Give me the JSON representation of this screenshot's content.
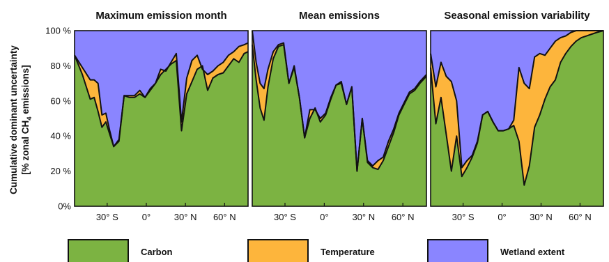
{
  "chart_data": {
    "type": "area",
    "ylabel_line1": "Cumulative dominant uncertainty",
    "ylabel_line2": "[% zonal CH",
    "ylabel_sub": "4",
    "ylabel_line2_end": " emissions]",
    "yticks": [
      "0%",
      "20 %",
      "40 %",
      "60 %",
      "80 %",
      "100 %"
    ],
    "ylim": [
      0,
      100
    ],
    "xlim": [
      -55,
      78
    ],
    "xticks": [
      {
        "value": -30,
        "label": "30° S"
      },
      {
        "value": 0,
        "label": "0°"
      },
      {
        "value": 30,
        "label": "30° N"
      },
      {
        "value": 60,
        "label": "60° N"
      }
    ],
    "colors": {
      "carbon": "#7cb342",
      "temperature": "#fdb53c",
      "wetland": "#8a85ff"
    },
    "legend": [
      {
        "name": "Carbon",
        "color_key": "carbon"
      },
      {
        "name": "Temperature",
        "color_key": "temperature"
      },
      {
        "name": "Wetland extent",
        "color_key": "wetland"
      }
    ],
    "panels": [
      {
        "title": "Maximum emission month",
        "lat": [
          -55,
          -49,
          -43,
          -40,
          -37,
          -34,
          -31,
          -28,
          -25,
          -21,
          -17,
          -13,
          -9,
          -5,
          -1,
          3,
          7,
          11,
          15,
          19,
          23,
          27,
          31,
          35,
          39,
          43,
          47,
          51,
          55,
          59,
          63,
          67,
          71,
          75,
          78
        ],
        "carbon": [
          86,
          75,
          61,
          62,
          54,
          45,
          48,
          41,
          34,
          37,
          63,
          62,
          62,
          64,
          62,
          66,
          70,
          75,
          78,
          81,
          83,
          43,
          64,
          71,
          78,
          80,
          66,
          73,
          75,
          76,
          80,
          84,
          82,
          87,
          88
        ],
        "carbon_plus_temperature": [
          86,
          79,
          72,
          72,
          70,
          52,
          53,
          43,
          34,
          38,
          63,
          63,
          63,
          66,
          62,
          67,
          70,
          78,
          77,
          82,
          87,
          48,
          73,
          83,
          86,
          78,
          75,
          77,
          80,
          82,
          86,
          88,
          91,
          92,
          93
        ]
      },
      {
        "title": "Mean emissions",
        "lat": [
          -55,
          -52,
          -49,
          -46,
          -43,
          -39,
          -35,
          -31,
          -27,
          -23,
          -19,
          -15,
          -11,
          -7,
          -3,
          1,
          5,
          9,
          13,
          17,
          21,
          25,
          29,
          33,
          37,
          41,
          45,
          49,
          53,
          57,
          61,
          65,
          69,
          73,
          78
        ],
        "carbon": [
          92,
          72,
          56,
          49,
          68,
          84,
          91,
          92,
          70,
          79,
          62,
          39,
          50,
          56,
          48,
          52,
          61,
          69,
          70,
          58,
          68,
          20,
          50,
          25,
          22,
          21,
          26,
          34,
          42,
          52,
          58,
          64,
          66,
          70,
          74
        ],
        "carbon_plus_temperature": [
          100,
          82,
          70,
          67,
          78,
          88,
          92,
          93,
          70,
          80,
          62,
          39,
          55,
          55,
          50,
          53,
          62,
          69,
          71,
          58,
          68,
          20,
          50,
          26,
          23,
          26,
          28,
          37,
          44,
          53,
          59,
          65,
          67,
          71,
          75
        ]
      },
      {
        "title": "Seasonal emission variability",
        "lat": [
          -55,
          -51,
          -47,
          -43,
          -39,
          -35,
          -31,
          -27,
          -23,
          -19,
          -15,
          -11,
          -7,
          -3,
          1,
          5,
          9,
          13,
          17,
          21,
          25,
          29,
          33,
          37,
          41,
          45,
          49,
          53,
          57,
          61,
          65,
          69,
          73,
          78
        ],
        "carbon": [
          79,
          47,
          62,
          41,
          20,
          40,
          17,
          22,
          28,
          36,
          52,
          54,
          48,
          43,
          43,
          44,
          46,
          37,
          12,
          23,
          45,
          52,
          61,
          68,
          72,
          82,
          87,
          91,
          94,
          96,
          97,
          98,
          99,
          100
        ],
        "carbon_plus_temperature": [
          87,
          68,
          82,
          74,
          71,
          60,
          22,
          26,
          29,
          37,
          52,
          54,
          48,
          43,
          43,
          44,
          49,
          79,
          70,
          67,
          85,
          87,
          86,
          90,
          94,
          96,
          97,
          99,
          100,
          100,
          100,
          100,
          100,
          100
        ]
      }
    ]
  }
}
